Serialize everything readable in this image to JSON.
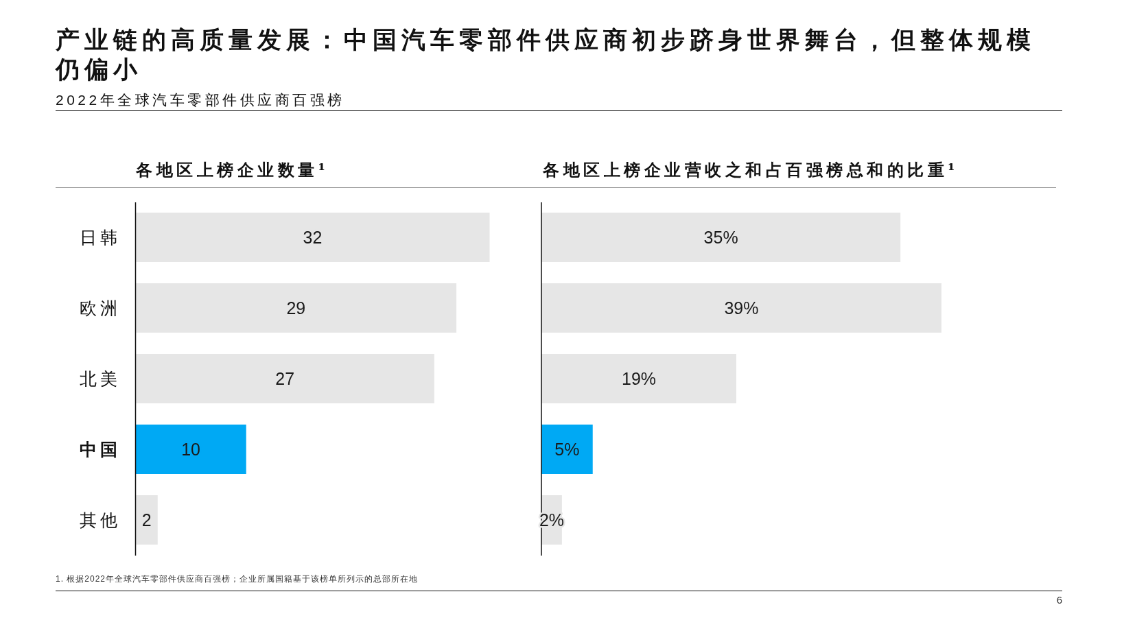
{
  "chart_data": [
    {
      "type": "other",
      "title": "产业链的高质量发展：中国汽车零部件供应商初步跻身世界舞台，但整体规模仍偏小",
      "subtitle": "2022年全球汽车零部件供应商百强榜",
      "annotations": [
        "1. 根据2022年全球汽车零部件供应商百强榜；企业所属国籍基于该榜单所列示的总部所在地",
        "6"
      ]
    },
    {
      "type": "bar",
      "orientation": "horizontal",
      "title": "各地区上榜企业数量¹",
      "categories": [
        "日韩",
        "欧洲",
        "北美",
        "中国",
        "其他"
      ],
      "values": [
        32,
        29,
        27,
        10,
        2
      ],
      "colors": [
        "#e6e6e6",
        "#e6e6e6",
        "#e6e6e6",
        "#00a9f4",
        "#e6e6e6"
      ],
      "data_labels": true,
      "tick_labels": "y"
    },
    {
      "type": "bar",
      "orientation": "horizontal",
      "title": "各地区上榜企业营收之和占百强榜总和的比重¹",
      "categories": [
        null,
        null,
        null,
        null,
        null
      ],
      "values": [
        35,
        39,
        19,
        5,
        2
      ],
      "colors": [
        "#e6e6e6",
        "#e6e6e6",
        "#e6e6e6",
        "#00a9f4",
        "#e6e6e6"
      ],
      "value_labels": [
        "35%",
        "39%",
        "19%",
        "5%",
        "2%"
      ],
      "tick_labels": false
    }
  ]
}
